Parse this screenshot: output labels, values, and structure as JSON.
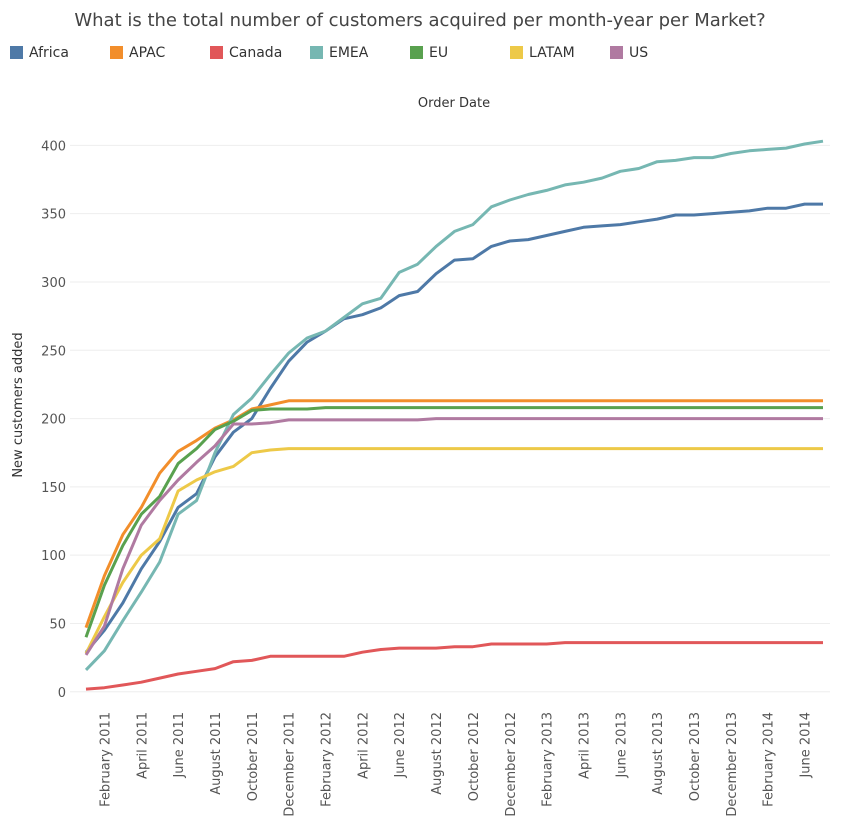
{
  "chart_data": {
    "type": "line",
    "title": "What is the total number of customers acquired per month-year per Market?",
    "x_label": "Order Date",
    "y_label": "New customers added",
    "categories": [
      null,
      "February 2011",
      null,
      "April 2011",
      null,
      "June 2011",
      null,
      "August 2011",
      null,
      "October 2011",
      null,
      "December 2011",
      null,
      "February 2012",
      null,
      "April 2012",
      null,
      "June 2012",
      null,
      "August 2012",
      null,
      "October 2012",
      null,
      "December 2012",
      null,
      "February 2013",
      null,
      "April 2013",
      null,
      "June 2013",
      null,
      "August 2013",
      null,
      "October 2013",
      null,
      "December 2013",
      null,
      "February 2014",
      null,
      "June 2014",
      null
    ],
    "ylim": [
      -6,
      420
    ],
    "yticks": [
      0,
      50,
      100,
      150,
      200,
      250,
      300,
      350,
      400
    ],
    "grid": true,
    "legend": "top",
    "series": [
      {
        "name": "Africa",
        "color": "#4e79a7",
        "values": [
          29,
          45,
          65,
          90,
          110,
          135,
          145,
          172,
          190,
          200,
          222,
          242,
          256,
          264,
          273,
          276,
          281,
          290,
          293,
          306,
          316,
          317,
          326,
          330,
          331,
          334,
          337,
          340,
          341,
          342,
          344,
          346,
          349,
          349,
          350,
          351,
          352,
          354,
          354,
          357,
          357
        ]
      },
      {
        "name": "APAC",
        "color": "#f28e2b",
        "values": [
          47,
          85,
          115,
          135,
          160,
          176,
          184,
          193,
          199,
          207,
          210,
          213,
          213,
          213,
          213,
          213,
          213,
          213,
          213,
          213,
          213,
          213,
          213,
          213,
          213,
          213,
          213,
          213,
          213,
          213,
          213,
          213,
          213,
          213,
          213,
          213,
          213,
          213,
          213,
          213,
          213
        ]
      },
      {
        "name": "Canada",
        "color": "#e15759",
        "values": [
          2,
          3,
          5,
          7,
          10,
          13,
          15,
          17,
          22,
          23,
          26,
          26,
          26,
          26,
          26,
          29,
          31,
          32,
          32,
          32,
          33,
          33,
          35,
          35,
          35,
          35,
          36,
          36,
          36,
          36,
          36,
          36,
          36,
          36,
          36,
          36,
          36,
          36,
          36,
          36,
          36
        ]
      },
      {
        "name": "EMEA",
        "color": "#76b7b2",
        "values": [
          16,
          30,
          52,
          73,
          95,
          130,
          140,
          175,
          203,
          215,
          232,
          248,
          259,
          264,
          274,
          284,
          288,
          307,
          313,
          326,
          337,
          342,
          355,
          360,
          364,
          367,
          371,
          373,
          376,
          381,
          383,
          388,
          389,
          391,
          391,
          394,
          396,
          397,
          398,
          401,
          403
        ]
      },
      {
        "name": "EU",
        "color": "#59a14f",
        "values": [
          40,
          78,
          107,
          130,
          143,
          167,
          178,
          192,
          198,
          206,
          207,
          207,
          207,
          208,
          208,
          208,
          208,
          208,
          208,
          208,
          208,
          208,
          208,
          208,
          208,
          208,
          208,
          208,
          208,
          208,
          208,
          208,
          208,
          208,
          208,
          208,
          208,
          208,
          208,
          208,
          208
        ]
      },
      {
        "name": "LATAM",
        "color": "#edc948",
        "values": [
          28,
          55,
          80,
          100,
          112,
          147,
          155,
          161,
          165,
          175,
          177,
          178,
          178,
          178,
          178,
          178,
          178,
          178,
          178,
          178,
          178,
          178,
          178,
          178,
          178,
          178,
          178,
          178,
          178,
          178,
          178,
          178,
          178,
          178,
          178,
          178,
          178,
          178,
          178,
          178,
          178
        ]
      },
      {
        "name": "US",
        "color": "#b07aa1",
        "values": [
          27,
          48,
          90,
          122,
          140,
          155,
          168,
          180,
          196,
          196,
          197,
          199,
          199,
          199,
          199,
          199,
          199,
          199,
          199,
          200,
          200,
          200,
          200,
          200,
          200,
          200,
          200,
          200,
          200,
          200,
          200,
          200,
          200,
          200,
          200,
          200,
          200,
          200,
          200,
          200,
          200
        ]
      }
    ]
  }
}
